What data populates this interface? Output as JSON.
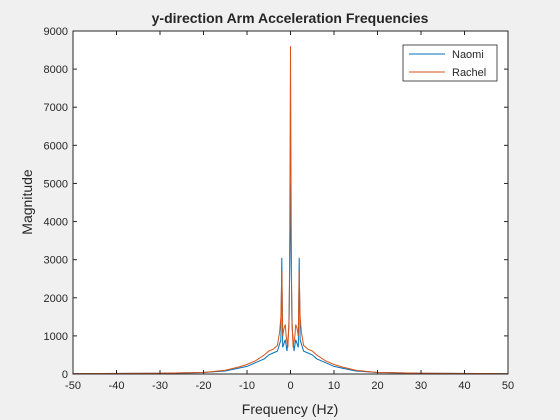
{
  "chart_data": {
    "type": "line",
    "title": "y-direction Arm Acceleration Frequencies",
    "xlabel": "Frequency (Hz)",
    "ylabel": "Magnitude",
    "xlim": [
      -50,
      50
    ],
    "ylim": [
      0,
      9000
    ],
    "xticks": [
      -50,
      -40,
      -30,
      -20,
      -10,
      0,
      10,
      20,
      30,
      40,
      50
    ],
    "yticks": [
      0,
      1000,
      2000,
      3000,
      4000,
      5000,
      6000,
      7000,
      8000,
      9000
    ],
    "grid": false,
    "legend_location": "top-right",
    "series": [
      {
        "name": "Naomi",
        "color": "#0072BD",
        "x": [
          -50,
          -30,
          -20,
          -15,
          -12,
          -10,
          -8,
          -6,
          -5,
          -4,
          -3,
          -2.2,
          -2.0,
          -1.8,
          -1.5,
          -1.2,
          -0.8,
          -0.4,
          -0.2,
          0,
          0.2,
          0.4,
          0.8,
          1.2,
          1.5,
          1.8,
          2.0,
          2.2,
          3,
          4,
          5,
          6,
          8,
          10,
          12,
          15,
          20,
          30,
          50
        ],
        "y": [
          10,
          20,
          40,
          80,
          150,
          200,
          300,
          400,
          500,
          550,
          600,
          900,
          3050,
          700,
          800,
          900,
          600,
          1200,
          2500,
          5000,
          2500,
          1200,
          600,
          900,
          800,
          700,
          3050,
          900,
          600,
          550,
          500,
          400,
          300,
          200,
          150,
          80,
          40,
          20,
          10
        ]
      },
      {
        "name": "Rachel",
        "color": "#D95319",
        "x": [
          -50,
          -30,
          -20,
          -15,
          -12,
          -10,
          -8,
          -6,
          -5,
          -4,
          -3,
          -2.5,
          -2.2,
          -2.0,
          -1.8,
          -1.5,
          -1.2,
          -1.0,
          -0.6,
          -0.3,
          -0.15,
          0,
          0.15,
          0.3,
          0.6,
          1.0,
          1.2,
          1.5,
          1.8,
          2.0,
          2.2,
          2.5,
          3,
          4,
          5,
          6,
          8,
          10,
          12,
          15,
          20,
          30,
          50
        ],
        "y": [
          10,
          20,
          40,
          100,
          180,
          250,
          350,
          500,
          600,
          650,
          750,
          1100,
          1500,
          2700,
          1000,
          1200,
          1300,
          1000,
          700,
          1500,
          4000,
          8600,
          4000,
          1500,
          700,
          1000,
          1300,
          1200,
          1000,
          2700,
          1500,
          1100,
          750,
          650,
          600,
          500,
          350,
          250,
          180,
          100,
          40,
          20,
          10
        ]
      }
    ]
  }
}
